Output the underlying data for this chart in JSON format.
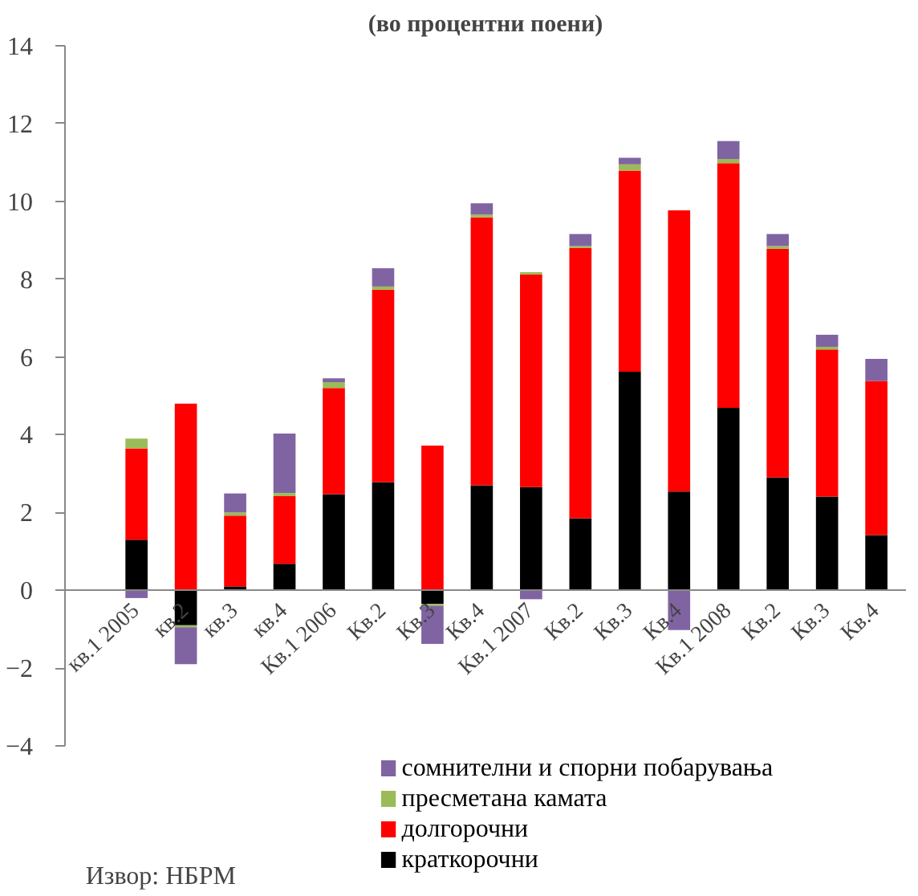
{
  "chart_data": {
    "type": "bar",
    "stacked": true,
    "subtitle": "(во процентни поени)",
    "categories": [
      "кв.1 2005",
      "кв.2",
      "кв.3",
      "кв.4",
      "Кв.1 2006",
      "Кв.2",
      "Кв.3",
      "Кв.4",
      "Кв.1 2007",
      "Кв.2",
      "Кв.3",
      "Кв.4",
      "Кв.1 2008",
      "Кв.2",
      "Кв.3",
      "Кв.4"
    ],
    "series": [
      {
        "name": "краткорочни",
        "color": "#000000",
        "values": [
          1.3,
          -0.9,
          0.1,
          0.68,
          2.47,
          2.78,
          -0.35,
          2.7,
          2.65,
          1.85,
          5.62,
          2.54,
          4.69,
          2.9,
          2.41,
          1.42
        ]
      },
      {
        "name": "долгорочни",
        "color": "#ff0000",
        "values": [
          2.35,
          4.8,
          1.82,
          1.74,
          2.73,
          4.95,
          3.72,
          6.89,
          5.47,
          6.95,
          5.17,
          7.23,
          6.29,
          5.88,
          3.78,
          3.96
        ]
      },
      {
        "name": "пресметана камата",
        "color": "#9bbb59",
        "values": [
          0.25,
          -0.05,
          0.08,
          0.08,
          0.15,
          0.08,
          -0.05,
          0.07,
          0.06,
          0.05,
          0.16,
          0,
          0.11,
          0.07,
          0.07,
          0
        ]
      },
      {
        "name": "сомнителни и спорни побарувања",
        "color": "#8064a2",
        "values": [
          -0.2,
          -0.95,
          0.49,
          1.53,
          0.1,
          0.47,
          -0.98,
          0.29,
          -0.23,
          0.31,
          0.17,
          -1.02,
          0.46,
          0.31,
          0.31,
          0.57
        ]
      }
    ],
    "ylim": [
      -4,
      14
    ],
    "yticks": [
      -4,
      -2,
      0,
      2,
      4,
      6,
      8,
      10,
      12,
      14
    ],
    "grid": false,
    "legend": "bottom right",
    "annotations": [
      "Извор: НБРМ"
    ]
  }
}
